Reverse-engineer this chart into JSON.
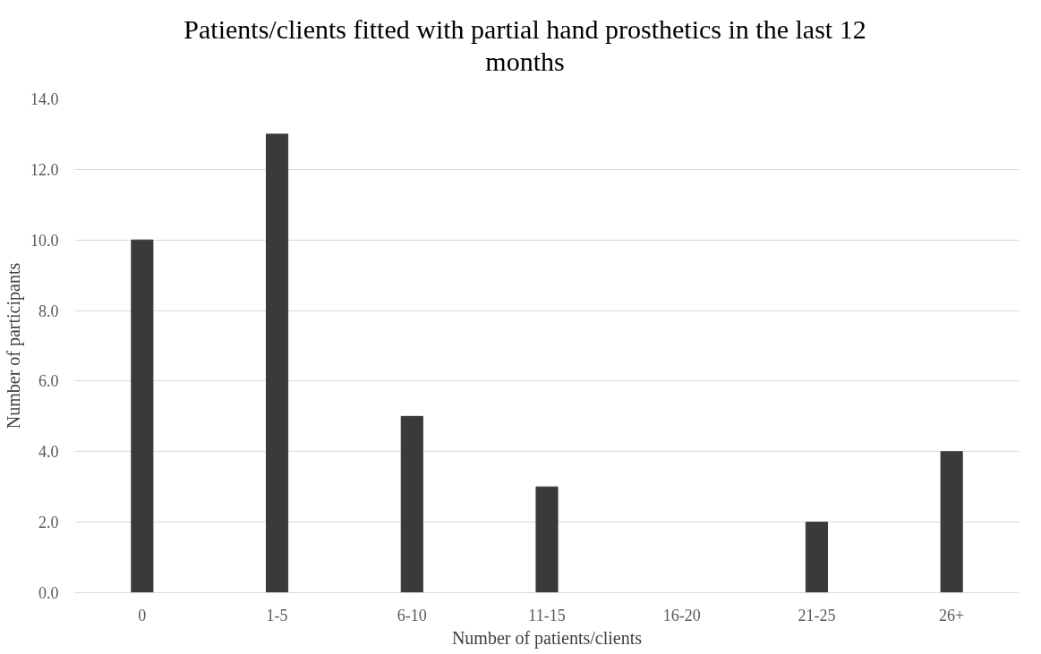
{
  "chart_data": {
    "type": "bar",
    "title": "Patients/clients fitted with partial hand prosthetics in the last 12 months",
    "xlabel": "Number of patients/clients",
    "ylabel": "Number of participants",
    "categories": [
      "0",
      "1-5",
      "6-10",
      "11-15",
      "16-20",
      "21-25",
      "26+"
    ],
    "values": [
      10,
      13,
      5,
      3,
      0,
      2,
      4
    ],
    "color": "#3a3a3a",
    "ylim": [
      0,
      14
    ],
    "yticks": [
      {
        "value": 0,
        "label": "0.0"
      },
      {
        "value": 2,
        "label": "2.0"
      },
      {
        "value": 4,
        "label": "4.0"
      },
      {
        "value": 6,
        "label": "6.0"
      },
      {
        "value": 8,
        "label": "8.0"
      },
      {
        "value": 10,
        "label": "10.0"
      },
      {
        "value": 12,
        "label": "12.0"
      },
      {
        "value": 14,
        "label": "14.0"
      }
    ],
    "grid": "y"
  }
}
